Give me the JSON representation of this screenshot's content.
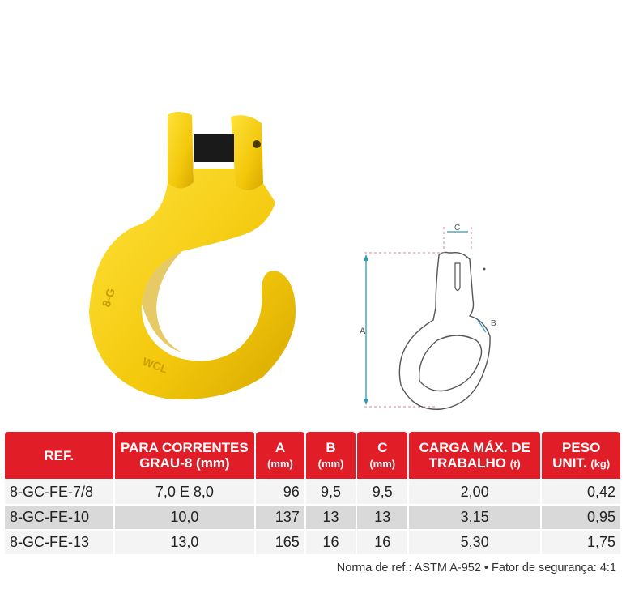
{
  "headers": {
    "ref": "REF.",
    "para_l1": "PARA CORRENTES",
    "para_l2": "GRAU-8 (mm)",
    "a_l1": "A",
    "a_l2": "(mm)",
    "b_l1": "B",
    "b_l2": "(mm)",
    "c_l1": "C",
    "c_l2": "(mm)",
    "carga_l1": "CARGA MÁX. DE",
    "carga_l2": "TRABALHO",
    "carga_unit": "(t)",
    "peso_l1": "PESO",
    "peso_l2": "UNIT.",
    "peso_unit": "(kg)"
  },
  "rows": [
    {
      "ref": "8-GC-FE-7/8",
      "para": "7,0 E 8,0",
      "a": "96",
      "b": "9,5",
      "c": "9,5",
      "carga": "2,00",
      "peso": "0,42"
    },
    {
      "ref": "8-GC-FE-10",
      "para": "10,0",
      "a": "137",
      "b": "13",
      "c": "13",
      "carga": "3,15",
      "peso": "0,95"
    },
    {
      "ref": "8-GC-FE-13",
      "para": "13,0",
      "a": "165",
      "b": "16",
      "c": "16",
      "carga": "5,30",
      "peso": "1,75"
    }
  ],
  "diagram": {
    "dim_a": "A",
    "dim_b": "B",
    "dim_c": "C"
  },
  "footnote": "Norma de ref.: ASTM A-952 • Fator de segurança: 4:1",
  "colors": {
    "header_red": "#e11d27",
    "hook_yellow": "#f5cf0e",
    "pin_black": "#1a1a1a"
  }
}
